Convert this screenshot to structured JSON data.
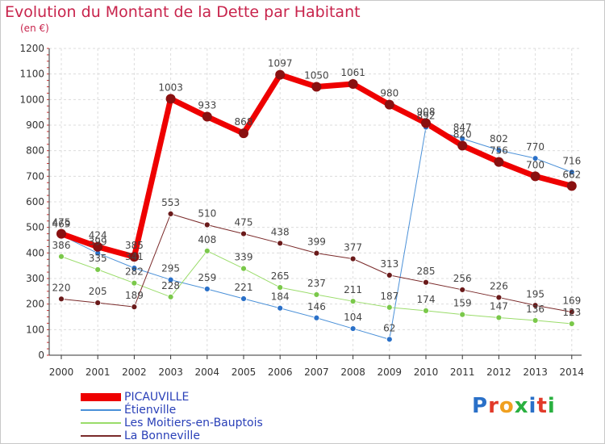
{
  "title": "Evolution du Montant de la Dette par Habitant",
  "unit_label": "(en €)",
  "logo": {
    "text": "Proxiti",
    "colors": [
      "#2a70c8",
      "#e23a2a",
      "#f0a020",
      "#2ab040",
      "#2a70c8",
      "#e23a2a",
      "#2ab040"
    ]
  },
  "chart_data": {
    "type": "line",
    "title": "Evolution du Montant de la Dette par Habitant",
    "ylabel": "(en €)",
    "xlabel": "",
    "ylim": [
      0,
      1200
    ],
    "yticks": [
      "0",
      "100",
      "200",
      "300",
      "400",
      "500",
      "600",
      "700",
      "800",
      "900",
      "1000",
      "1100",
      "1200"
    ],
    "categories": [
      "2000",
      "2001",
      "2002",
      "2003",
      "2004",
      "2005",
      "2006",
      "2007",
      "2008",
      "2009",
      "2010",
      "2011",
      "2012",
      "2013",
      "2014"
    ],
    "grid": true,
    "legend_position": "bottom-left",
    "series": [
      {
        "name": "Étienville",
        "color": "#4a90d8",
        "marker": "#2a70c8",
        "width": 1,
        "values": [
          469,
          399,
          341,
          295,
          259,
          221,
          184,
          146,
          104,
          62,
          892,
          847,
          802,
          770,
          716
        ],
        "labels": [
          "469",
          "399",
          "341",
          "295",
          "259",
          "221",
          "184",
          "146",
          "104",
          "62",
          "892",
          "847",
          "802",
          "770",
          "716"
        ]
      },
      {
        "name": "Les Moitiers-en-Bauptois",
        "color": "#9adc6a",
        "marker": "#7ac84a",
        "width": 1,
        "values": [
          386,
          335,
          282,
          228,
          408,
          339,
          265,
          237,
          211,
          187,
          174,
          159,
          147,
          136,
          123
        ],
        "labels": [
          "386",
          "335",
          "282",
          "228",
          "408",
          "339",
          "265",
          "237",
          "211",
          "187",
          "174",
          "159",
          "147",
          "136",
          "123"
        ]
      },
      {
        "name": "La Bonneville",
        "color": "#7a2a2a",
        "marker": "#6a1a1a",
        "width": 1,
        "values": [
          220,
          205,
          189,
          553,
          510,
          475,
          438,
          399,
          377,
          313,
          285,
          256,
          226,
          195,
          169
        ],
        "labels": [
          "220",
          "205",
          "189",
          "553",
          "510",
          "475",
          "438",
          "399",
          "377",
          "313",
          "285",
          "256",
          "226",
          "195",
          "169"
        ]
      },
      {
        "name": "PICAUVILLE",
        "color": "#ee0000",
        "marker": "#8a1010",
        "width": 7,
        "values": [
          475,
          424,
          385,
          1003,
          933,
          868,
          1097,
          1050,
          1061,
          980,
          908,
          820,
          756,
          700,
          662
        ],
        "labels": [
          "475",
          "424",
          "385",
          "1003",
          "933",
          "868",
          "1097",
          "1050",
          "1061",
          "980",
          "908",
          "820",
          "756",
          "700",
          "662"
        ]
      }
    ],
    "legend": [
      "PICAUVILLE",
      "Étienville",
      "Les Moitiers-en-Bauptois",
      "La Bonneville"
    ]
  }
}
